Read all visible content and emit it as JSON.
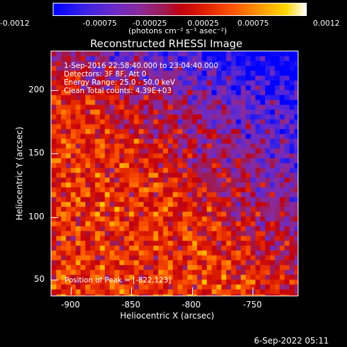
{
  "colorbar": {
    "ticks": [
      "-0.0012",
      "-0.00075",
      "-0.00025",
      "0.00025",
      "0.00075",
      "0.0012"
    ],
    "unit_label": "(photons cm⁻² s⁻¹ asec⁻²)"
  },
  "plot": {
    "title": "Reconstructed RHESSI Image",
    "xlabel": "Heliocentric X (arcsec)",
    "ylabel": "Heliocentric Y (arcsec)",
    "xticks": [
      "-900",
      "-850",
      "-800",
      "-750"
    ],
    "yticks": [
      "200",
      "150",
      "100",
      "50"
    ],
    "info_lines": [
      "1-Sep-2016 22:58:40.000 to 23:04:40.000",
      "Detectors: 3F 8F, Att 0",
      "Energy Range: 25.0 - 50.0 keV",
      "Clean     Total counts: 4.39E+03"
    ],
    "peak": "Position of Peak = [-822,123]"
  },
  "footer": {
    "timestamp": "6-Sep-2022 05:11"
  }
}
